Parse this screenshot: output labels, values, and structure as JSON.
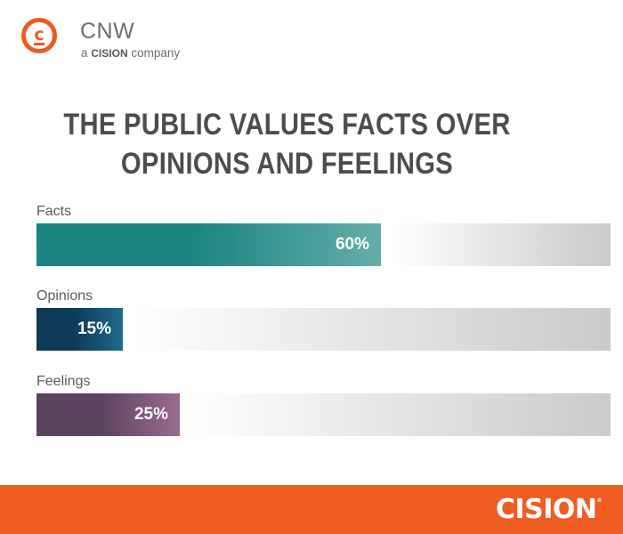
{
  "logo": {
    "icon": "cnw-circle-c-icon",
    "glyph": "c",
    "name": "CNW",
    "tag_prefix": "a ",
    "tag_brand": "CISION",
    "tag_suffix": " company"
  },
  "footer": {
    "brand": "CISION",
    "registered": "®"
  },
  "colors": {
    "brand_orange": "#ef5d22",
    "title_gray": "#4d4d4d",
    "track_gray": "#c9cacc"
  },
  "chart_data": {
    "type": "bar",
    "orientation": "horizontal",
    "title": "THE PUBLIC VALUES FACTS OVER OPINIONS AND FEELINGS",
    "categories": [
      "Facts",
      "Opinions",
      "Feelings"
    ],
    "values": [
      60,
      15,
      25
    ],
    "value_labels": [
      "60%",
      "15%",
      "25%"
    ],
    "unit": "%",
    "xlim": [
      0,
      100
    ],
    "grid": false,
    "legend": "none",
    "series_colors": [
      [
        "#1b8480",
        "#64aeab"
      ],
      [
        "#0e3b57",
        "#1f6a8e"
      ],
      [
        "#5c4461",
        "#9a6a90"
      ]
    ]
  }
}
